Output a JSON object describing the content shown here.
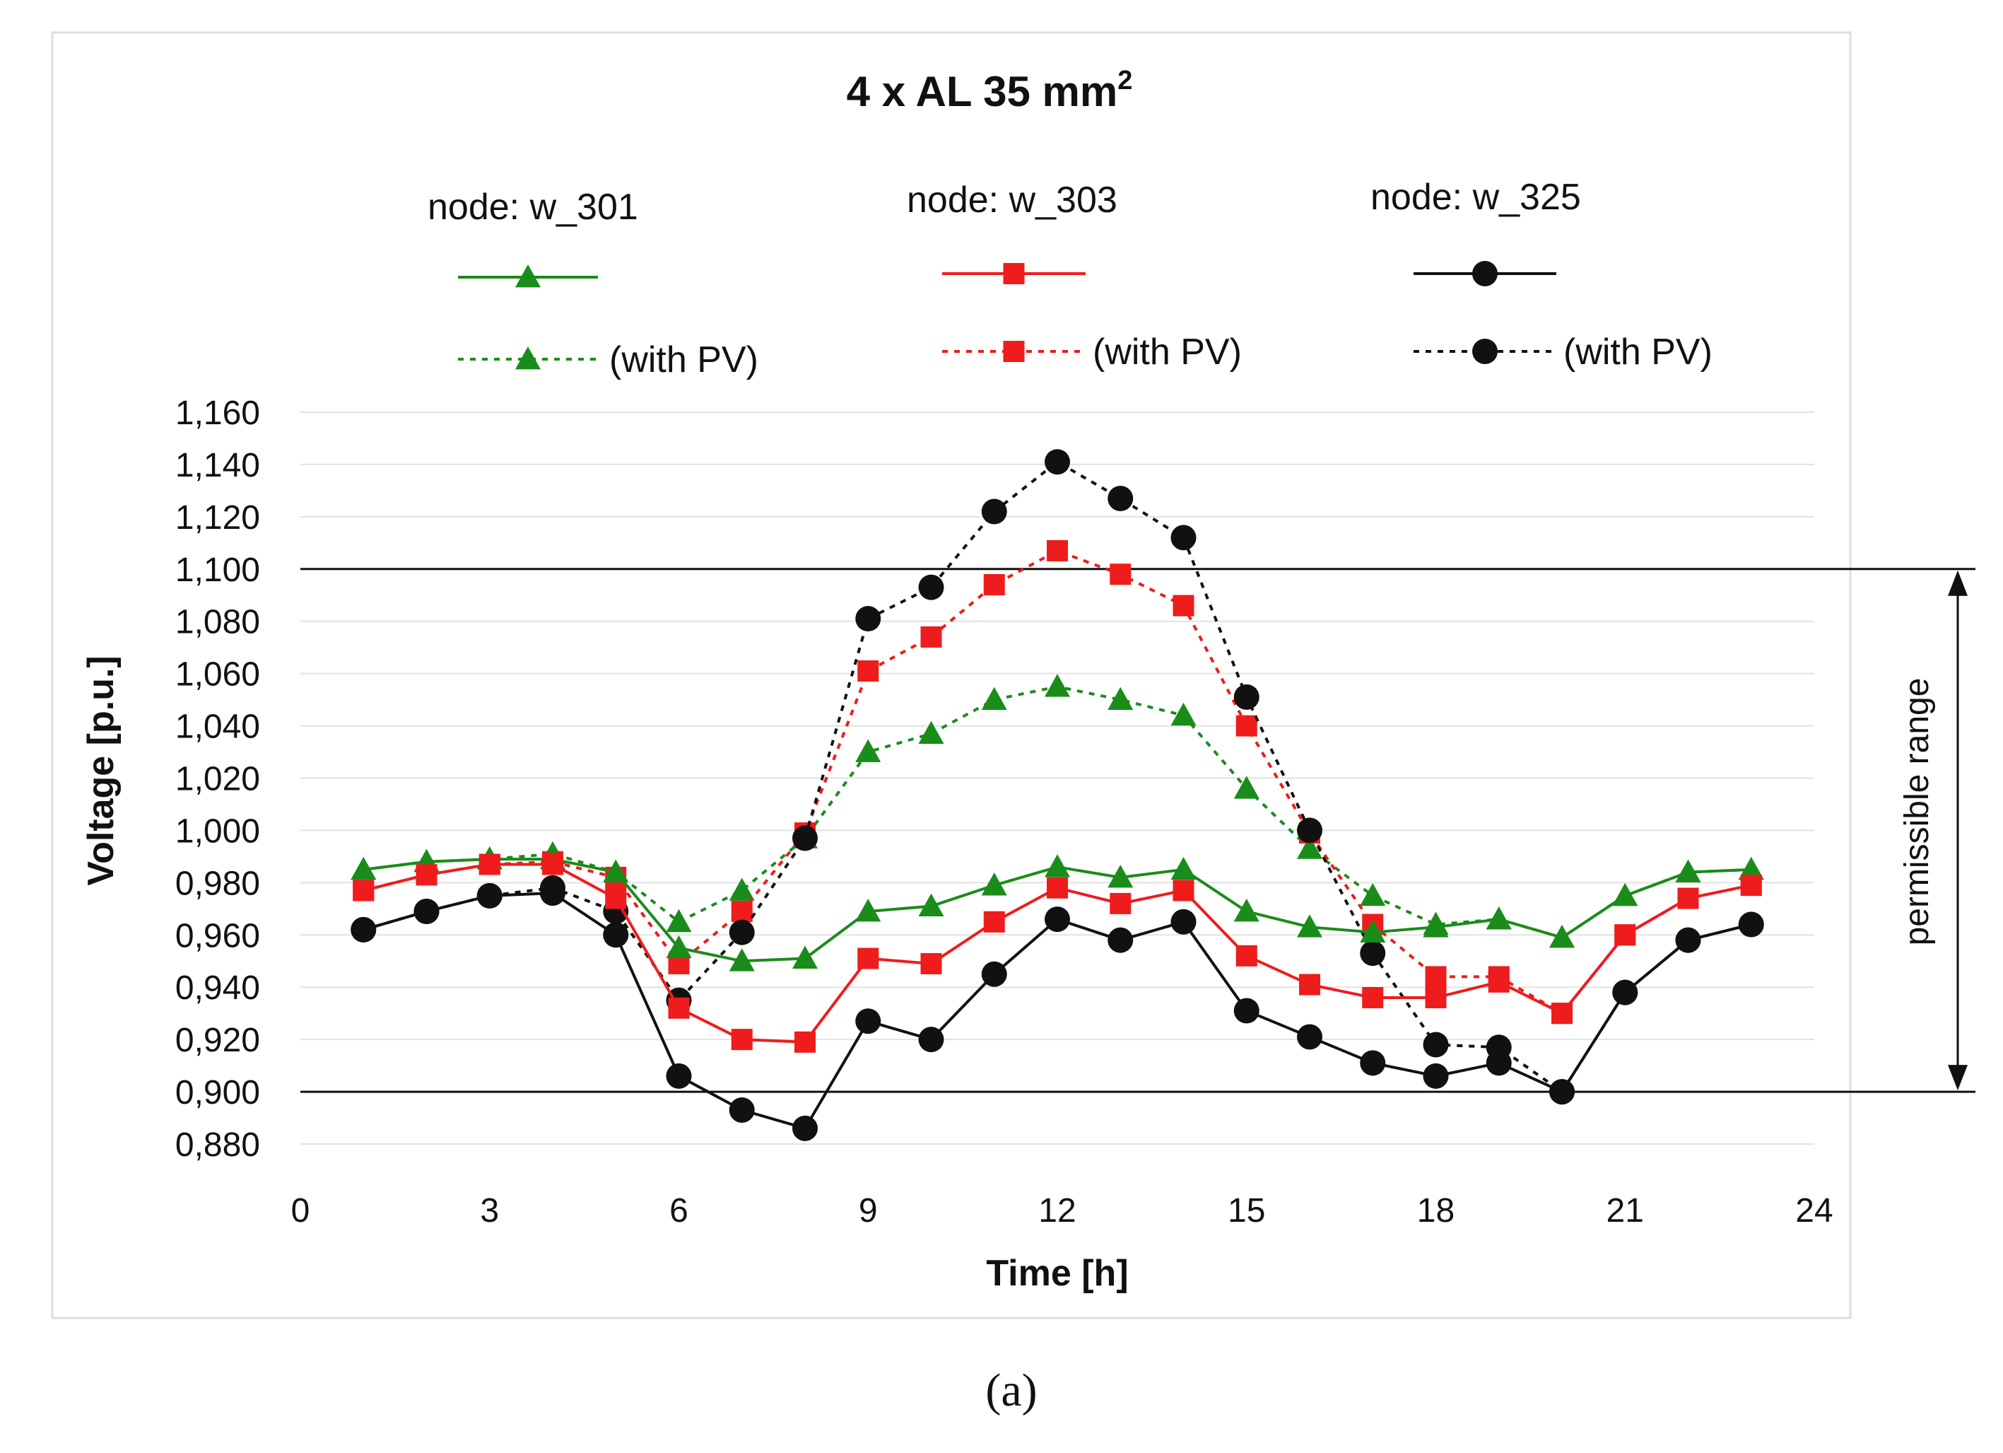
{
  "chart_data": {
    "type": "line",
    "title": "4 x AL 35 mm",
    "title_superscript": "2",
    "xlabel": "Time [h]",
    "ylabel": "Voltage [p.u.]",
    "xlim": [
      0,
      24
    ],
    "ylim": [
      0.88,
      1.16
    ],
    "x_ticks": [
      0,
      3,
      6,
      9,
      12,
      15,
      18,
      21,
      24
    ],
    "x_tick_labels": [
      "0",
      "3",
      "6",
      "9",
      "12",
      "15",
      "18",
      "21",
      "24"
    ],
    "y_ticks": [
      0.88,
      0.9,
      0.92,
      0.94,
      0.96,
      0.98,
      1.0,
      1.02,
      1.04,
      1.06,
      1.08,
      1.1,
      1.12,
      1.14,
      1.16
    ],
    "y_tick_labels": [
      "0,880",
      "0,900",
      "0,920",
      "0,940",
      "0,960",
      "0,980",
      "1,000",
      "1,020",
      "1,040",
      "1,060",
      "1,080",
      "1,100",
      "1,120",
      "1,140",
      "1,160"
    ],
    "grid": true,
    "limits": [
      1.1,
      0.9
    ],
    "range_annotation": "permissible range",
    "legend_position": "top",
    "legend": {
      "groups": [
        {
          "title": "node: w_301",
          "with_pv_label": "(with PV)"
        },
        {
          "title": "node: w_303",
          "with_pv_label": "(with PV)"
        },
        {
          "title": "node: w_325",
          "with_pv_label": "(with PV)"
        }
      ]
    },
    "x": [
      1,
      2,
      3,
      4,
      5,
      6,
      7,
      8,
      9,
      10,
      11,
      12,
      13,
      14,
      15,
      16,
      17,
      18,
      19,
      20,
      21,
      22,
      23
    ],
    "series": [
      {
        "name": "node: w_301",
        "color": "#1a8c1a",
        "marker": "triangle",
        "dashed": false,
        "values": [
          0.985,
          0.988,
          0.989,
          0.989,
          0.984,
          0.955,
          0.95,
          0.951,
          0.969,
          0.971,
          0.979,
          0.986,
          0.982,
          0.985,
          0.969,
          0.963,
          0.961,
          0.963,
          0.966,
          0.959,
          0.975,
          0.984,
          0.985
        ]
      },
      {
        "name": "node: w_301 (with PV)",
        "color": "#1a8c1a",
        "marker": "triangle",
        "dashed": true,
        "values": [
          0.985,
          0.988,
          0.989,
          0.991,
          0.984,
          0.965,
          0.977,
          0.997,
          1.03,
          1.037,
          1.05,
          1.055,
          1.05,
          1.044,
          1.016,
          0.993,
          0.975,
          0.964,
          0.966,
          0.959,
          0.975,
          0.984,
          0.985
        ]
      },
      {
        "name": "node: w_303",
        "color": "#ee1c1c",
        "marker": "square",
        "dashed": false,
        "values": [
          0.977,
          0.983,
          0.987,
          0.987,
          0.974,
          0.932,
          0.92,
          0.919,
          0.951,
          0.949,
          0.965,
          0.978,
          0.972,
          0.977,
          0.952,
          0.941,
          0.936,
          0.936,
          0.942,
          0.93,
          0.96,
          0.974,
          0.979
        ]
      },
      {
        "name": "node: w_303 (with PV)",
        "color": "#ee1c1c",
        "marker": "square",
        "dashed": true,
        "values": [
          0.977,
          0.983,
          0.987,
          0.988,
          0.982,
          0.949,
          0.969,
          0.999,
          1.061,
          1.074,
          1.094,
          1.107,
          1.098,
          1.086,
          1.04,
          0.999,
          0.964,
          0.944,
          0.944,
          0.93,
          0.96,
          0.974,
          0.979
        ]
      },
      {
        "name": "node: w_325",
        "color": "#111111",
        "marker": "circle",
        "dashed": false,
        "values": [
          0.962,
          0.969,
          0.975,
          0.976,
          0.96,
          0.906,
          0.893,
          0.886,
          0.927,
          0.92,
          0.945,
          0.966,
          0.958,
          0.965,
          0.931,
          0.921,
          0.911,
          0.906,
          0.911,
          0.9,
          0.938,
          0.958,
          0.964
        ]
      },
      {
        "name": "node: w_325 (with PV)",
        "color": "#111111",
        "marker": "circle",
        "dashed": true,
        "values": [
          0.962,
          0.969,
          0.975,
          0.978,
          0.969,
          0.935,
          0.961,
          0.997,
          1.081,
          1.093,
          1.122,
          1.141,
          1.127,
          1.112,
          1.051,
          1.0,
          0.953,
          0.918,
          0.917,
          0.9,
          0.938,
          0.958,
          0.964
        ]
      }
    ]
  },
  "caption": "(a)"
}
